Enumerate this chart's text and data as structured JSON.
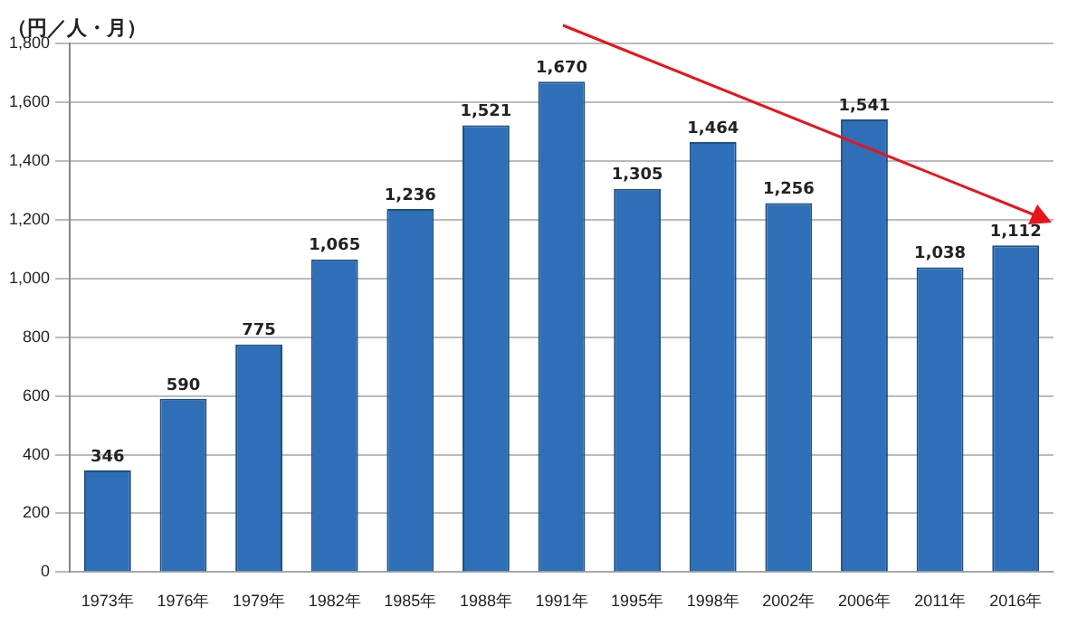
{
  "chart_data": {
    "type": "bar",
    "ylabel": "（円／人・月）",
    "categories": [
      "1973年",
      "1976年",
      "1979年",
      "1982年",
      "1985年",
      "1988年",
      "1991年",
      "1995年",
      "1998年",
      "2002年",
      "2006年",
      "2011年",
      "2016年"
    ],
    "values": [
      346,
      590,
      775,
      1065,
      1236,
      1521,
      1670,
      1305,
      1464,
      1256,
      1541,
      1038,
      1112
    ],
    "color": "#2e6fb7",
    "ylim": [
      0,
      1800
    ],
    "yticks": [
      0,
      200,
      400,
      600,
      800,
      {
        "value": 1000,
        "label": "1,000"
      },
      {
        "value": 1200,
        "label": "1,200"
      },
      {
        "value": 1400,
        "label": "1,400"
      },
      {
        "value": 1600,
        "label": "1,600"
      },
      {
        "value": 1800,
        "label": "1,800"
      }
    ],
    "value_labels": [
      "346",
      "590",
      "775",
      "1,065",
      "1,236",
      "1,521",
      "1,670",
      "1,305",
      "1,464",
      "1,256",
      "1,541",
      "1,038",
      "1,112"
    ],
    "grid": "y",
    "legend": false
  }
}
